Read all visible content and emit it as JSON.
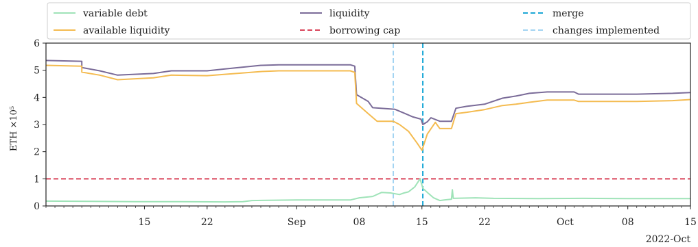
{
  "chart_data": {
    "type": "line",
    "ylabel": "ETH ×10⁵",
    "ylim": [
      0,
      6
    ],
    "yticks": [
      0,
      1,
      2,
      3,
      4,
      5,
      6
    ],
    "xlim_days": [
      0,
      95
    ],
    "xticks": [
      {
        "day": 11,
        "label": "15"
      },
      {
        "day": 18,
        "label": "22"
      },
      {
        "day": 28,
        "label": "Sep"
      },
      {
        "day": 35,
        "label": "08"
      },
      {
        "day": 42,
        "label": "15"
      },
      {
        "day": 49,
        "label": "22"
      },
      {
        "day": 58,
        "label": "Oct"
      },
      {
        "day": 65,
        "label": "08"
      },
      {
        "day": 72,
        "label": "15"
      }
    ],
    "x_offset_label": "2022-Oct",
    "legend_position": "top",
    "series": [
      {
        "name": "variable debt",
        "color": "#9fe3b8",
        "points": [
          [
            0,
            0.18
          ],
          [
            5,
            0.17
          ],
          [
            10,
            0.16
          ],
          [
            15,
            0.16
          ],
          [
            20,
            0.15
          ],
          [
            22,
            0.16
          ],
          [
            23,
            0.2
          ],
          [
            28,
            0.22
          ],
          [
            34,
            0.22
          ],
          [
            35,
            0.3
          ],
          [
            36.5,
            0.35
          ],
          [
            37.5,
            0.5
          ],
          [
            38.5,
            0.48
          ],
          [
            39.5,
            0.42
          ],
          [
            40,
            0.48
          ],
          [
            40.5,
            0.52
          ],
          [
            41.2,
            0.7
          ],
          [
            41.8,
            1.0
          ],
          [
            42.1,
            0.65
          ],
          [
            42.6,
            0.5
          ],
          [
            43.3,
            0.3
          ],
          [
            44,
            0.2
          ],
          [
            44.5,
            0.22
          ],
          [
            45.3,
            0.25
          ],
          [
            45.4,
            0.6
          ],
          [
            45.5,
            0.28
          ],
          [
            48,
            0.3
          ],
          [
            50,
            0.28
          ],
          [
            55,
            0.27
          ],
          [
            60,
            0.28
          ],
          [
            65,
            0.27
          ],
          [
            72,
            0.27
          ]
        ]
      },
      {
        "name": "liquidity",
        "color": "#7a6b98",
        "points": [
          [
            0,
            5.36
          ],
          [
            4,
            5.33
          ],
          [
            4,
            5.1
          ],
          [
            6,
            4.98
          ],
          [
            8,
            4.82
          ],
          [
            12,
            4.88
          ],
          [
            14,
            4.98
          ],
          [
            18,
            4.98
          ],
          [
            20,
            5.05
          ],
          [
            24,
            5.18
          ],
          [
            26,
            5.2
          ],
          [
            34,
            5.2
          ],
          [
            34.5,
            5.15
          ],
          [
            34.7,
            4.1
          ],
          [
            36,
            3.85
          ],
          [
            36.5,
            3.62
          ],
          [
            39,
            3.56
          ],
          [
            40,
            3.42
          ],
          [
            41,
            3.28
          ],
          [
            41.9,
            3.2
          ],
          [
            42.1,
            3.0
          ],
          [
            42.6,
            3.1
          ],
          [
            43,
            3.25
          ],
          [
            44,
            3.12
          ],
          [
            45.3,
            3.12
          ],
          [
            45.8,
            3.6
          ],
          [
            47,
            3.67
          ],
          [
            49,
            3.75
          ],
          [
            51,
            3.97
          ],
          [
            52.5,
            4.05
          ],
          [
            54,
            4.15
          ],
          [
            56,
            4.2
          ],
          [
            59,
            4.2
          ],
          [
            59.5,
            4.12
          ],
          [
            66,
            4.12
          ],
          [
            70,
            4.15
          ],
          [
            72,
            4.18
          ]
        ]
      },
      {
        "name": "available liquidity",
        "color": "#f4bb50",
        "points": [
          [
            0,
            5.18
          ],
          [
            4,
            5.15
          ],
          [
            4,
            4.93
          ],
          [
            6,
            4.82
          ],
          [
            8,
            4.65
          ],
          [
            12,
            4.72
          ],
          [
            14,
            4.82
          ],
          [
            18,
            4.8
          ],
          [
            20,
            4.85
          ],
          [
            24,
            4.95
          ],
          [
            26,
            4.98
          ],
          [
            34,
            4.98
          ],
          [
            34.5,
            4.92
          ],
          [
            34.7,
            3.78
          ],
          [
            36,
            3.4
          ],
          [
            37,
            3.12
          ],
          [
            38.8,
            3.12
          ],
          [
            39.5,
            3.0
          ],
          [
            40.5,
            2.75
          ],
          [
            41.5,
            2.3
          ],
          [
            42,
            2.05
          ],
          [
            42.6,
            2.65
          ],
          [
            43.5,
            3.08
          ],
          [
            44,
            2.85
          ],
          [
            45.3,
            2.85
          ],
          [
            45.8,
            3.4
          ],
          [
            47,
            3.45
          ],
          [
            49,
            3.55
          ],
          [
            51,
            3.7
          ],
          [
            52.5,
            3.75
          ],
          [
            54,
            3.82
          ],
          [
            56,
            3.9
          ],
          [
            59,
            3.9
          ],
          [
            59.5,
            3.85
          ],
          [
            66,
            3.85
          ],
          [
            70,
            3.88
          ],
          [
            72,
            3.92
          ]
        ]
      }
    ],
    "hlines": [
      {
        "name": "borrowing cap",
        "y": 1.0,
        "color": "#d9445a"
      }
    ],
    "vlines": [
      {
        "name": "changes implemented",
        "day": 38.8,
        "color": "#a3d4f2"
      },
      {
        "name": "merge",
        "day": 42.1,
        "color": "#1ba7d6"
      }
    ],
    "legend": [
      {
        "label": "variable debt",
        "color": "#9fe3b8",
        "style": "solid"
      },
      {
        "label": "liquidity",
        "color": "#7a6b98",
        "style": "solid"
      },
      {
        "label": "merge",
        "color": "#1ba7d6",
        "style": "dashed"
      },
      {
        "label": "available liquidity",
        "color": "#f4bb50",
        "style": "solid"
      },
      {
        "label": "borrowing cap",
        "color": "#d9445a",
        "style": "dashed"
      },
      {
        "label": "changes implemented",
        "color": "#a3d4f2",
        "style": "dashed"
      }
    ]
  }
}
